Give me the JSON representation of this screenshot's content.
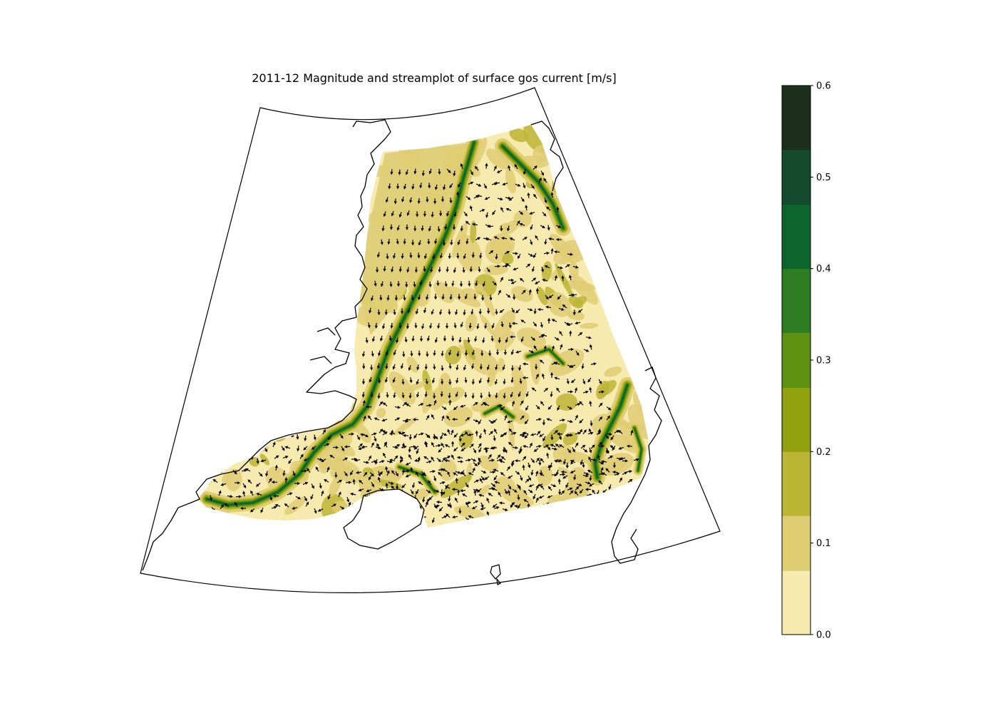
{
  "map": {
    "title": "2011-12 Magnitude and streamplot of surface gos current [m/s]",
    "variable": "surface gos current magnitude",
    "unit": "m/s",
    "colormap": "speed",
    "arrows": "streamplot"
  },
  "colorbar": {
    "min": 0.0,
    "max": 0.6,
    "ticks": [
      "0.0",
      "0.1",
      "0.2",
      "0.3",
      "0.4",
      "0.5",
      "0.6"
    ],
    "levels": [
      {
        "from": 0.0,
        "to": 0.07,
        "color": "#f6eaaf"
      },
      {
        "from": 0.07,
        "to": 0.13,
        "color": "#dfcd74"
      },
      {
        "from": 0.13,
        "to": 0.2,
        "color": "#bcb536"
      },
      {
        "from": 0.2,
        "to": 0.27,
        "color": "#92a20e"
      },
      {
        "from": 0.27,
        "to": 0.33,
        "color": "#5f9110"
      },
      {
        "from": 0.33,
        "to": 0.4,
        "color": "#2e7d23"
      },
      {
        "from": 0.4,
        "to": 0.47,
        "color": "#0c652d"
      },
      {
        "from": 0.47,
        "to": 0.53,
        "color": "#144a2d"
      },
      {
        "from": 0.53,
        "to": 0.6,
        "color": "#1b2f1c"
      }
    ]
  },
  "colors": {
    "land": "#ffffff",
    "coastline": "#000000",
    "arrow": "#000000",
    "frame": "#000000"
  }
}
